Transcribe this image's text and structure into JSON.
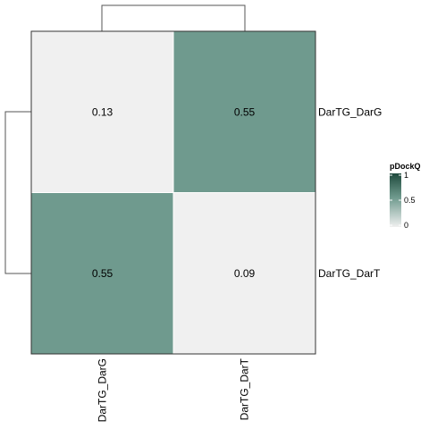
{
  "chart_data": {
    "type": "heatmap",
    "rows": [
      "DarTG_DarG",
      "DarTG_DarT"
    ],
    "columns": [
      "DarTG_DarG",
      "DarTG_DarT"
    ],
    "values": [
      [
        0.13,
        0.55
      ],
      [
        0.55,
        0.09
      ]
    ],
    "value_labels": [
      [
        "0.13",
        "0.55"
      ],
      [
        "0.55",
        "0.09"
      ]
    ],
    "row_dendrogram": true,
    "column_dendrogram": true,
    "legend": {
      "title": "pDockQ",
      "ticks": [
        1,
        0.5,
        0
      ],
      "tick_labels": [
        "1",
        "0.5",
        "0"
      ],
      "range": [
        0,
        1
      ],
      "position": "right"
    },
    "colors": {
      "low": "#f0f0f0",
      "mid": "#6f9a8e",
      "high": "#1f4a3d"
    }
  }
}
